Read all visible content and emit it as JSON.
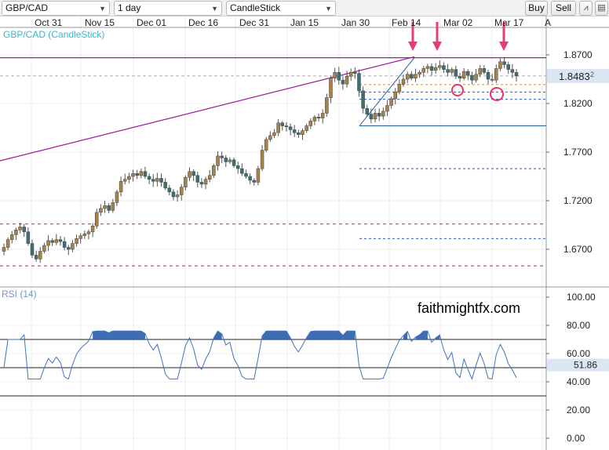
{
  "toolbar": {
    "symbol": "GBP/CAD",
    "timeframe": "1 day",
    "chart_type": "CandleStick",
    "buy_label": "Buy",
    "sell_label": "Sell"
  },
  "chart_title": "GBP/CAD (CandleStick)",
  "rsi_title": "RSI (14)",
  "watermark": "faithmightfx.com",
  "current_price": "1.8483",
  "current_price_suffix": "2",
  "current_rsi": "51.86",
  "colors": {
    "bull": "#a6834a",
    "bear": "#3e6f74",
    "trend": "#9b1aa0",
    "fib_orange": "#d98a19",
    "fib_blue": "#2a5da8",
    "dashed_magenta": "#b0169f",
    "arrow": "#e83b7a",
    "circle": "#e8336b",
    "rsi_line": "#3f72c2",
    "rsi_fill": "#2a5da8",
    "price_label_bg": "#dbe6f4"
  },
  "chart_data": {
    "type": "candlestick",
    "title": "GBP/CAD (CandleStick)",
    "x_tick_labels": [
      "Oct 31",
      "Nov 15",
      "Dec 01",
      "Dec 16",
      "Dec 31",
      "Jan 15",
      "Jan 30",
      "Feb 14",
      "Mar 02",
      "Mar 17"
    ],
    "y_ticks": [
      1.87,
      1.82,
      1.77,
      1.72,
      1.67
    ],
    "y_tick_labels": [
      "1.8700",
      "1.8200",
      "1.7700",
      "1.7200",
      "1.6700"
    ],
    "ylim": [
      1.6395,
      1.894
    ],
    "rsi_ticks": [
      100,
      80,
      60,
      40,
      20,
      0
    ],
    "rsi_tick_labels": [
      "100.00",
      "80.00",
      "60.00",
      "40.00",
      "20.00",
      "0.00"
    ],
    "rsi_levels": [
      70,
      50,
      30
    ],
    "closes": [
      1.672,
      1.68,
      1.685,
      1.69,
      1.693,
      1.688,
      1.676,
      1.664,
      1.66,
      1.668,
      1.674,
      1.679,
      1.677,
      1.68,
      1.678,
      1.672,
      1.67,
      1.676,
      1.681,
      1.684,
      1.686,
      1.688,
      1.694,
      1.708,
      1.712,
      1.715,
      1.71,
      1.718,
      1.729,
      1.74,
      1.742,
      1.745,
      1.748,
      1.746,
      1.75,
      1.745,
      1.742,
      1.74,
      1.743,
      1.739,
      1.733,
      1.729,
      1.724,
      1.726,
      1.734,
      1.744,
      1.75,
      1.746,
      1.739,
      1.737,
      1.742,
      1.746,
      1.756,
      1.766,
      1.764,
      1.76,
      1.762,
      1.756,
      1.753,
      1.748,
      1.745,
      1.741,
      1.739,
      1.753,
      1.772,
      1.783,
      1.787,
      1.79,
      1.8,
      1.797,
      1.796,
      1.793,
      1.79,
      1.788,
      1.792,
      1.797,
      1.802,
      1.806,
      1.805,
      1.81,
      1.826,
      1.846,
      1.852,
      1.844,
      1.84,
      1.848,
      1.852,
      1.851,
      1.833,
      1.815,
      1.809,
      1.804,
      1.81,
      1.807,
      1.812,
      1.818,
      1.825,
      1.832,
      1.84,
      1.845,
      1.85,
      1.846,
      1.85,
      1.852,
      1.856,
      1.858,
      1.854,
      1.857,
      1.859,
      1.855,
      1.852,
      1.855,
      1.848,
      1.846,
      1.853,
      1.849,
      1.844,
      1.85,
      1.856,
      1.852,
      1.845,
      1.844,
      1.856,
      1.863,
      1.86,
      1.855,
      1.852,
      1.8483
    ],
    "horizontal_lines": [
      {
        "label": "resistance",
        "value": 1.8671
      },
      {
        "label": "fib",
        "value": 1.8483
      },
      {
        "label": "fib",
        "value": 1.8395
      },
      {
        "label": "fib",
        "value": 1.8318
      },
      {
        "label": "fib",
        "value": 1.8243
      },
      {
        "label": "fib",
        "value": 1.797
      },
      {
        "label": "fib",
        "value": 1.753
      },
      {
        "label": "fib",
        "value": 1.681
      },
      {
        "label": "support",
        "value": 1.696
      },
      {
        "label": "support",
        "value": 1.653
      }
    ]
  }
}
